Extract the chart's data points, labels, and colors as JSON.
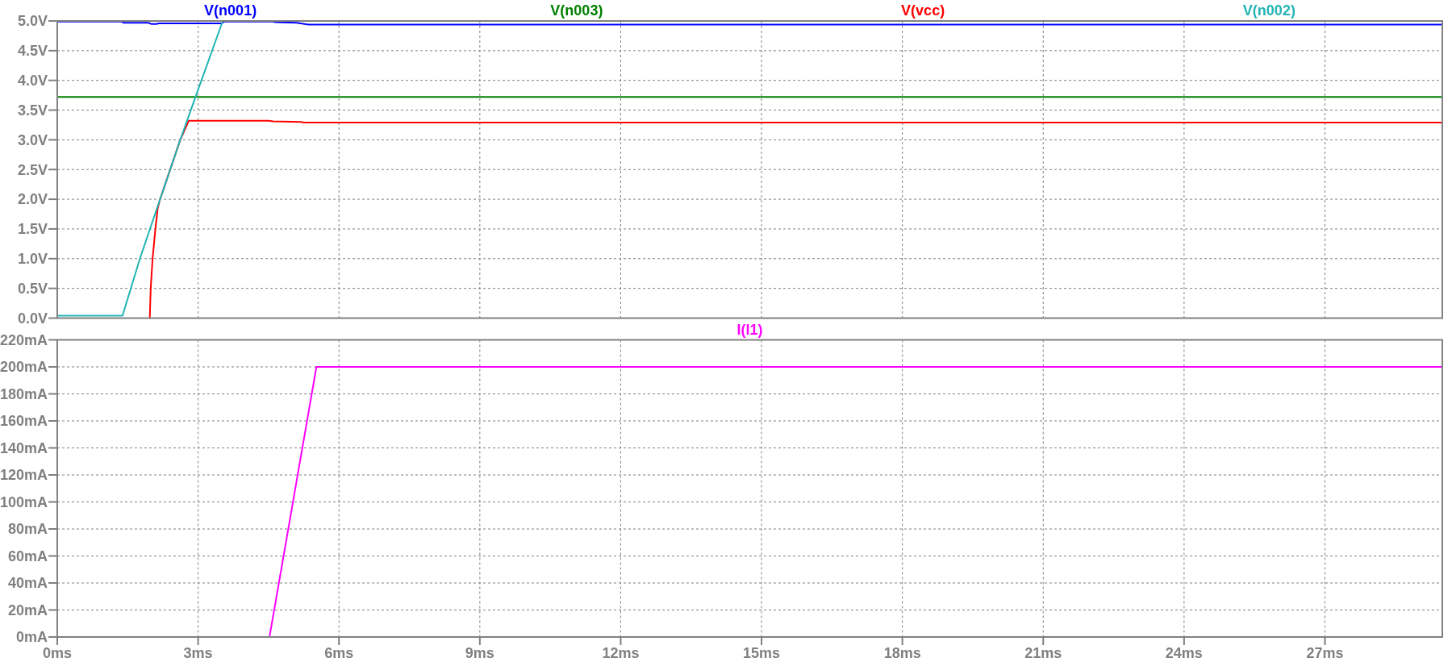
{
  "chart_data": [
    {
      "type": "line",
      "xlim": [
        0,
        29.5
      ],
      "xticks": [
        {
          "value": 0,
          "label": null
        },
        {
          "value": 3,
          "label": null
        },
        {
          "value": 6,
          "label": null
        },
        {
          "value": 9,
          "label": null
        },
        {
          "value": 12,
          "label": null
        },
        {
          "value": 15,
          "label": null
        },
        {
          "value": 18,
          "label": null
        },
        {
          "value": 21,
          "label": null
        },
        {
          "value": 24,
          "label": null
        },
        {
          "value": 27,
          "label": null
        }
      ],
      "ylim": [
        0,
        5
      ],
      "yticks": [
        {
          "value": 0,
          "label": "0.0V"
        },
        {
          "value": 0.5,
          "label": "0.5V"
        },
        {
          "value": 1,
          "label": "1.0V"
        },
        {
          "value": 1.5,
          "label": "1.5V"
        },
        {
          "value": 2,
          "label": "2.0V"
        },
        {
          "value": 2.5,
          "label": "2.5V"
        },
        {
          "value": 3,
          "label": "3.0V"
        },
        {
          "value": 3.5,
          "label": "3.5V"
        },
        {
          "value": 4,
          "label": "4.0V"
        },
        {
          "value": 4.5,
          "label": "4.5V"
        },
        {
          "value": 5,
          "label": "5.0V"
        }
      ],
      "tick_labels": "y",
      "grid": true,
      "legend": "top",
      "series": [
        {
          "name": "V(n001)",
          "color": "#0000ff",
          "x": [
            0,
            1.37,
            1.41,
            1.94,
            2.0,
            2.11,
            2.16,
            3.5,
            3.56,
            4.6,
            4.65,
            5.1,
            5.35,
            29.5
          ],
          "values": [
            4.99,
            4.99,
            4.97,
            4.97,
            4.95,
            4.95,
            4.96,
            4.96,
            4.99,
            4.99,
            4.98,
            4.97,
            4.94,
            4.94
          ]
        },
        {
          "name": "V(n003)",
          "color": "#008000",
          "x": [
            0,
            29.5
          ],
          "values": [
            3.72,
            3.72
          ]
        },
        {
          "name": "V(vcc)",
          "color": "#ff0000",
          "x": [
            1.97,
            1.99,
            2.03,
            2.09,
            2.14,
            2.19,
            2.62,
            2.8,
            4.5,
            4.6,
            5.2,
            5.25,
            29.5
          ],
          "values": [
            0,
            0.5,
            1,
            1.5,
            1.85,
            2,
            3,
            3.32,
            3.32,
            3.31,
            3.3,
            3.29,
            3.29
          ]
        },
        {
          "name": "V(n002)",
          "color": "#22b4b4",
          "x": [
            0,
            1.39,
            1.76,
            2.19,
            2.62,
            3.07,
            3.52
          ],
          "values": [
            0.04,
            0.04,
            1,
            2,
            3,
            4,
            4.99
          ]
        }
      ]
    },
    {
      "type": "line",
      "xlim": [
        0,
        29.5
      ],
      "xticks": [
        {
          "value": 0,
          "label": "0ms"
        },
        {
          "value": 3,
          "label": "3ms"
        },
        {
          "value": 6,
          "label": "6ms"
        },
        {
          "value": 9,
          "label": "9ms"
        },
        {
          "value": 12,
          "label": "12ms"
        },
        {
          "value": 15,
          "label": "15ms"
        },
        {
          "value": 18,
          "label": "18ms"
        },
        {
          "value": 21,
          "label": "21ms"
        },
        {
          "value": 24,
          "label": "24ms"
        },
        {
          "value": 27,
          "label": "27ms"
        }
      ],
      "ylim": [
        0,
        220
      ],
      "yticks": [
        {
          "value": 0,
          "label": "0mA"
        },
        {
          "value": 20,
          "label": "20mA"
        },
        {
          "value": 40,
          "label": "40mA"
        },
        {
          "value": 60,
          "label": "60mA"
        },
        {
          "value": 80,
          "label": "80mA"
        },
        {
          "value": 100,
          "label": "100mA"
        },
        {
          "value": 120,
          "label": "120mA"
        },
        {
          "value": 140,
          "label": "140mA"
        },
        {
          "value": 160,
          "label": "160mA"
        },
        {
          "value": 180,
          "label": "180mA"
        },
        {
          "value": 200,
          "label": "200mA"
        },
        {
          "value": 220,
          "label": "220mA"
        }
      ],
      "grid": true,
      "legend": "top",
      "series": [
        {
          "name": "I(l1)",
          "color": "#ff00ff",
          "x": [
            4.52,
            5.52,
            29.5
          ],
          "values": [
            0,
            200,
            200
          ]
        }
      ]
    }
  ]
}
